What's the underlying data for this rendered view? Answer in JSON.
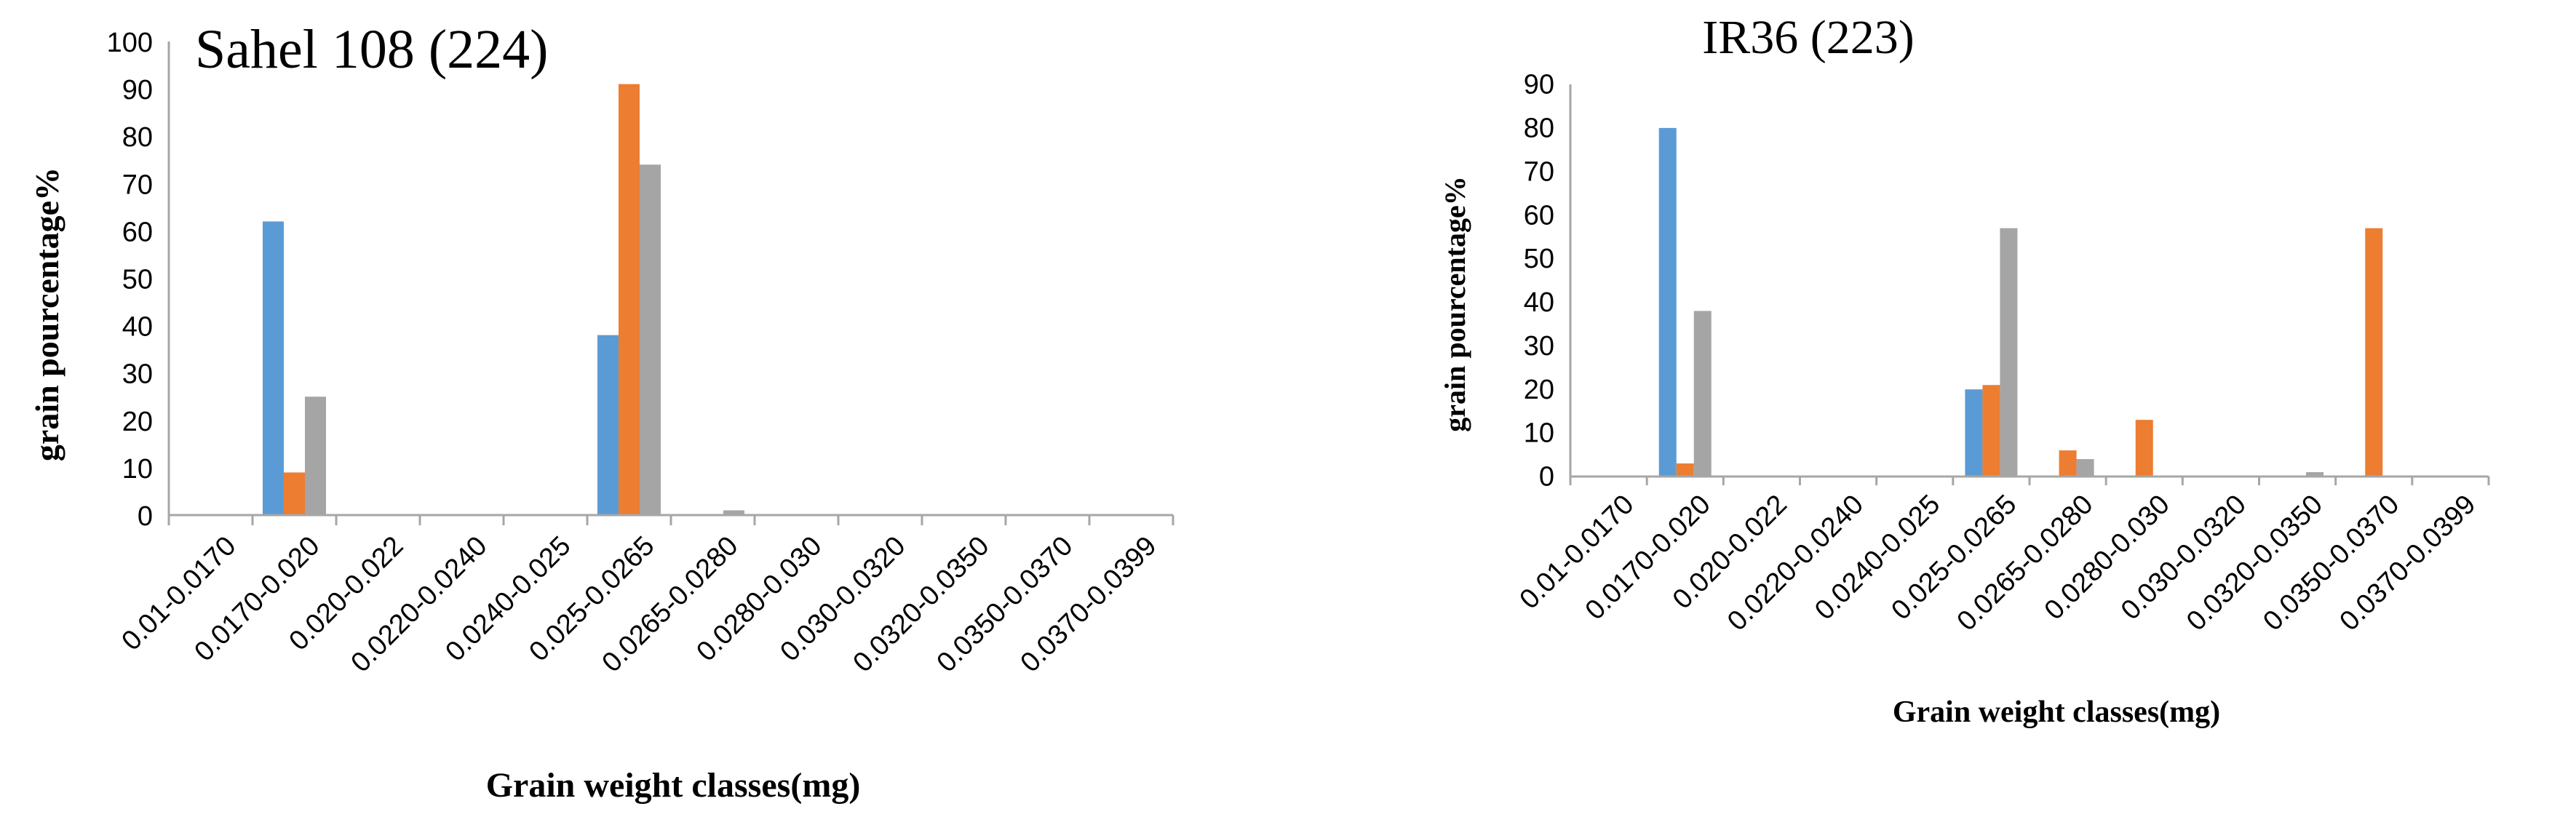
{
  "colors": {
    "blue": "#5b9bd5",
    "orange": "#ed7d31",
    "gray": "#a5a5a5"
  },
  "chart_data": [
    {
      "type": "bar",
      "title": "Sahel 108 (224)",
      "xlabel": "Grain weight classes(mg)",
      "ylabel": "grain pourcentage%",
      "ylim": [
        0,
        100
      ],
      "yticks": [
        0,
        10,
        20,
        30,
        40,
        50,
        60,
        70,
        80,
        90,
        100
      ],
      "grid": false,
      "categories": [
        "0.01-0.0170",
        "0.0170-0.020",
        "0.020-0.022",
        "0.0220-0.0240",
        "0.0240-0.025",
        "0.025-0.0265",
        "0.0265-0.0280",
        "0.0280-0.030",
        "0.030-0.0320",
        "0.0320-0.0350",
        "0.0350-0.0370",
        "0.0370-0.0399"
      ],
      "series": [
        {
          "color": "#5b9bd5",
          "values": [
            0,
            62,
            0,
            0,
            0,
            38,
            0,
            0,
            0,
            0,
            0,
            0
          ]
        },
        {
          "color": "#ed7d31",
          "values": [
            0,
            9,
            0,
            0,
            0,
            91,
            0,
            0,
            0,
            0,
            0,
            0
          ]
        },
        {
          "color": "#a5a5a5",
          "values": [
            0,
            25,
            0,
            0,
            0,
            74,
            1,
            0,
            0,
            0,
            0,
            0
          ]
        }
      ]
    },
    {
      "type": "bar",
      "title": "IR36 (223)",
      "xlabel": "Grain weight classes(mg)",
      "ylabel": "grain pourcentage%",
      "ylim": [
        0,
        90
      ],
      "yticks": [
        0,
        10,
        20,
        30,
        40,
        50,
        60,
        70,
        80,
        90
      ],
      "grid": false,
      "categories": [
        "0.01-0.0170",
        "0.0170-0.020",
        "0.020-0.022",
        "0.0220-0.0240",
        "0.0240-0.025",
        "0.025-0.0265",
        "0.0265-0.0280",
        "0.0280-0.030",
        "0.030-0.0320",
        "0.0320-0.0350",
        "0.0350-0.0370",
        "0.0370-0.0399"
      ],
      "series": [
        {
          "color": "#5b9bd5",
          "values": [
            0,
            80,
            0,
            0,
            0,
            20,
            0,
            0,
            0,
            0,
            0,
            0
          ]
        },
        {
          "color": "#ed7d31",
          "values": [
            0,
            3,
            0,
            0,
            0,
            21,
            6,
            13,
            0,
            0,
            57,
            0
          ]
        },
        {
          "color": "#a5a5a5",
          "values": [
            0,
            38,
            0,
            0,
            0,
            57,
            4,
            0,
            0,
            1,
            0,
            0
          ]
        }
      ]
    }
  ]
}
